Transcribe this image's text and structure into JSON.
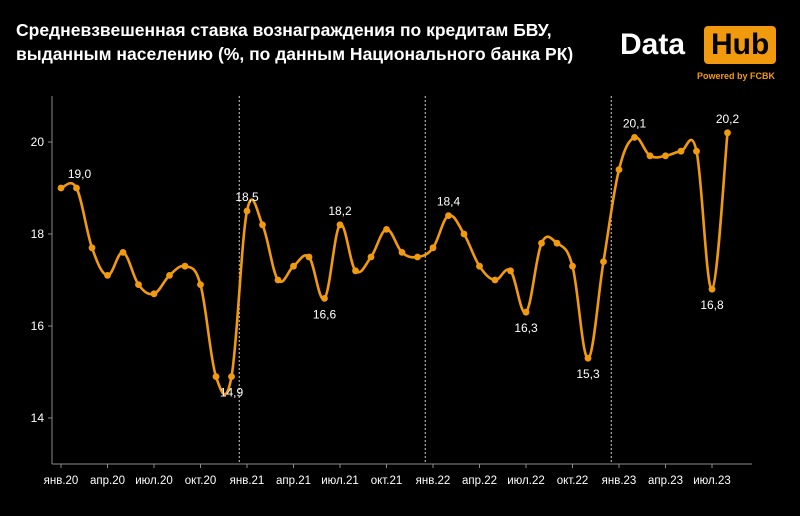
{
  "title_line1": "Средневзвешенная ставка вознаграждения по кредитам БВУ,",
  "title_line2": "выданным населению (%, по данным Национального банка РК)",
  "logo": {
    "data_text": "Data",
    "hub_text": "Hub",
    "powered_text": "Powered by FCBK"
  },
  "colors": {
    "line": "#f29a0e",
    "axis": "#8a8a8a",
    "text": "#ffffff",
    "background": "#000000"
  },
  "chart_data": {
    "type": "line",
    "title": "",
    "xlabel": "",
    "ylabel": "",
    "ylim": [
      13,
      21
    ],
    "yticks": [
      14,
      16,
      18,
      20
    ],
    "x_tick_labels": [
      "янв.20",
      "апр.20",
      "июл.20",
      "окт.20",
      "янв.21",
      "апр.21",
      "июл.21",
      "окт.21",
      "янв.22",
      "апр.22",
      "июл.22",
      "окт.22",
      "янв.23",
      "апр.23",
      "июл.23"
    ],
    "x_tick_indices": [
      0,
      3,
      6,
      9,
      12,
      15,
      18,
      21,
      24,
      27,
      30,
      33,
      36,
      39,
      42
    ],
    "year_dividers_between": [
      [
        11,
        12
      ],
      [
        23,
        24
      ],
      [
        35,
        36
      ]
    ],
    "series": [
      {
        "values": [
          19.0,
          19.0,
          17.7,
          17.1,
          17.6,
          16.9,
          16.7,
          17.1,
          17.3,
          16.9,
          14.9,
          14.9,
          18.5,
          18.2,
          17.0,
          17.3,
          17.5,
          16.6,
          18.2,
          17.2,
          17.5,
          18.1,
          17.6,
          17.5,
          17.7,
          18.4,
          18.0,
          17.3,
          17.0,
          17.2,
          16.3,
          17.8,
          17.8,
          17.3,
          15.3,
          17.4,
          19.4,
          20.1,
          19.7,
          19.7,
          19.8,
          19.8,
          16.8,
          20.2
        ]
      }
    ],
    "data_labels": [
      {
        "index": 1,
        "text": "19,0"
      },
      {
        "index": 11,
        "text": "14,9"
      },
      {
        "index": 12,
        "text": "18,5"
      },
      {
        "index": 17,
        "text": "16,6"
      },
      {
        "index": 18,
        "text": "18,2"
      },
      {
        "index": 25,
        "text": "18,4"
      },
      {
        "index": 30,
        "text": "16,3"
      },
      {
        "index": 34,
        "text": "15,3"
      },
      {
        "index": 37,
        "text": "20,1"
      },
      {
        "index": 42,
        "text": "16,8"
      },
      {
        "index": 43,
        "text": "20,2"
      }
    ]
  }
}
